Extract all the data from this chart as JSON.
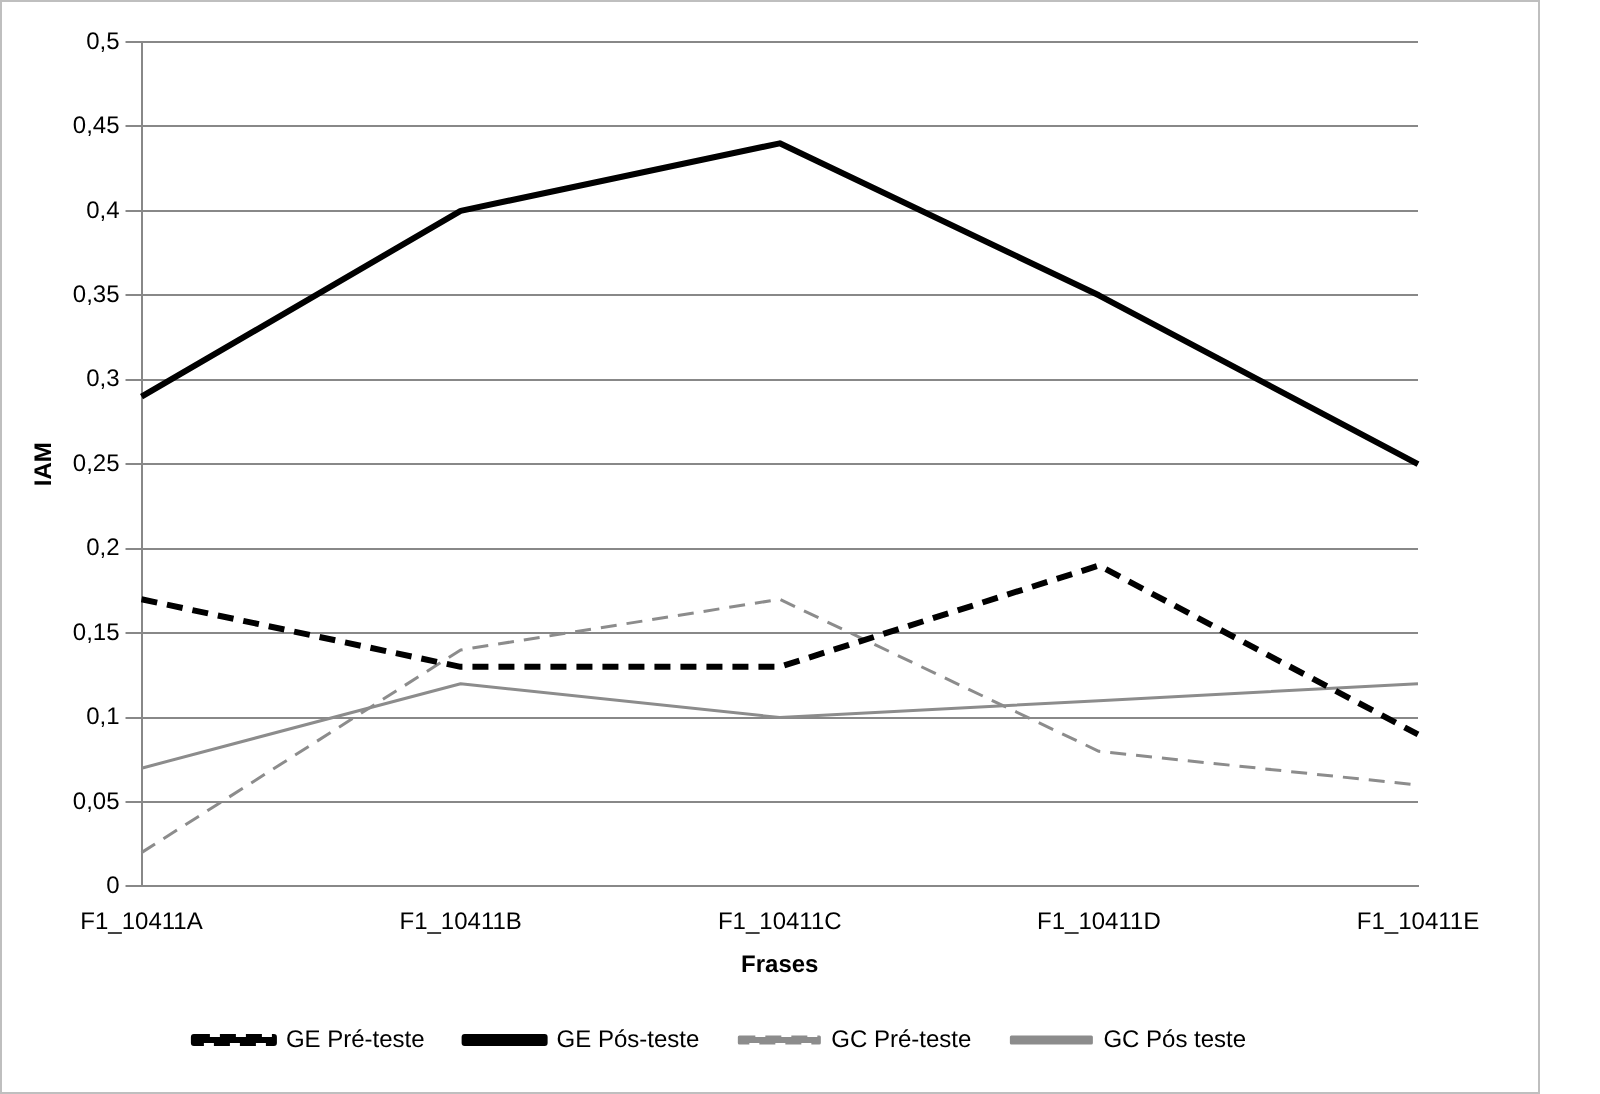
{
  "chart_data": {
    "type": "line",
    "xlabel": "Frases",
    "ylabel": "IAM",
    "categories": [
      "F1_10411A",
      "F1_10411B",
      "F1_10411C",
      "F1_10411D",
      "F1_10411E"
    ],
    "series": [
      {
        "name": "GE Pré-teste",
        "color": "#000000",
        "line_style": "dashed",
        "values": [
          0.17,
          0.13,
          0.13,
          0.19,
          0.09
        ]
      },
      {
        "name": "GE Pós-teste",
        "color": "#000000",
        "line_style": "solid",
        "values": [
          0.29,
          0.4,
          0.44,
          0.35,
          0.25
        ]
      },
      {
        "name": "GC Pré-teste",
        "color": "#8c8c8c",
        "line_style": "dashed",
        "values": [
          0.02,
          0.14,
          0.17,
          0.08,
          0.06
        ]
      },
      {
        "name": "GC Pós teste",
        "color": "#8c8c8c",
        "line_style": "solid",
        "values": [
          0.07,
          0.12,
          0.1,
          0.11,
          0.12
        ]
      }
    ],
    "ylim": [
      0,
      0.5
    ],
    "yticks": [
      {
        "value": 0,
        "label": "0"
      },
      {
        "value": 0.05,
        "label": "0,05"
      },
      {
        "value": 0.1,
        "label": "0,1"
      },
      {
        "value": 0.15,
        "label": "0,15"
      },
      {
        "value": 0.2,
        "label": "0,2"
      },
      {
        "value": 0.25,
        "label": "0,25"
      },
      {
        "value": 0.3,
        "label": "0,3"
      },
      {
        "value": 0.35,
        "label": "0,35"
      },
      {
        "value": 0.4,
        "label": "0,4"
      },
      {
        "value": 0.45,
        "label": "0,45"
      },
      {
        "value": 0.5,
        "label": "0,5"
      }
    ],
    "grid": "y",
    "legend": "bottom",
    "marker": "none"
  }
}
